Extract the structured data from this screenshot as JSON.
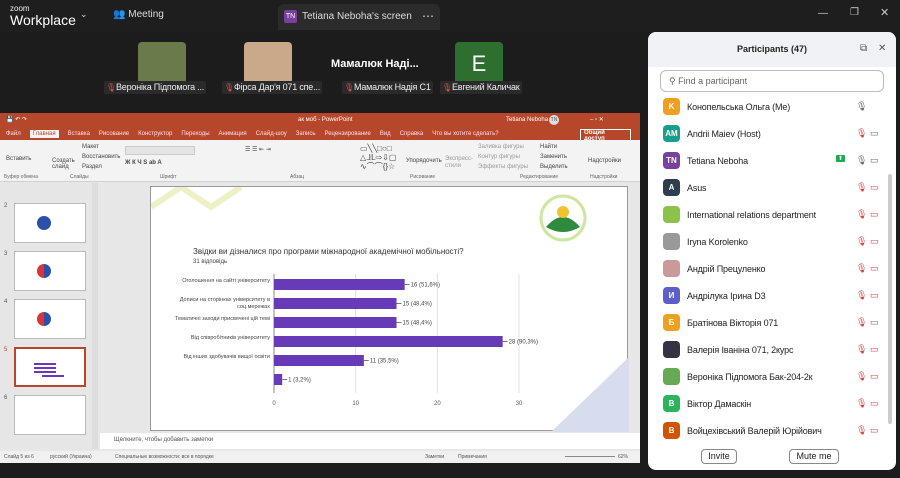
{
  "topbar": {
    "logo_small": "zoom",
    "logo_big": "Workplace",
    "meeting": "Meeting",
    "share_initials": "TN",
    "share_title": "Tetiana Neboha's screen"
  },
  "videos": [
    {
      "name": "Вероніка Підпомога ..."
    },
    {
      "name": "Фірса Дар'я  071 спе..."
    },
    {
      "name": "Мамалюк Наді...",
      "label": "Мамалюк Надія С1"
    },
    {
      "name": "Евгений Каличак",
      "initial": "E"
    }
  ],
  "ppt": {
    "title": "ак моб - PowerPoint",
    "user": "Tetiana Neboha",
    "user_initials": "TN",
    "tabs": [
      "Файл",
      "Главная",
      "Вставка",
      "Рисование",
      "Конструктор",
      "Переходы",
      "Анимация",
      "Слайд-шоу",
      "Запись",
      "Рецензирование",
      "Вид",
      "Справка",
      "Что вы хотите сделать?"
    ],
    "share": "Общий доступ",
    "groups": [
      "Буфер обмена",
      "Слайды",
      "Шрифт",
      "Абзац",
      "Рисование",
      "Редактирование",
      "Надстройки"
    ],
    "buttons": {
      "paste": "Вставить",
      "create": "Создать слайд",
      "layout": "Макет",
      "reset": "Восстановить",
      "section": "Раздел",
      "arrange": "Упорядочить",
      "styles": "Экспресс-стили",
      "fill": "Заливка фигуры",
      "outline": "Контур фигуры",
      "effects": "Эффекты фигуры",
      "find": "Найти",
      "replace": "Заменить",
      "select": "Выделить",
      "addins": "Надстройки"
    },
    "thumb_numbers": [
      "2",
      "3",
      "4",
      "5",
      "6"
    ],
    "notes": "Щелкните, чтобы добавить заметки",
    "status": {
      "slide": "Слайд 5 из 6",
      "lang": "русский (Украина)",
      "access": "Специальные возможности: все в порядке",
      "notes": "Заметки",
      "comments": "Примечания",
      "zoom": "62%"
    }
  },
  "slide": {
    "chart_data": {
      "type": "bar",
      "orientation": "horizontal",
      "title": "Звідки ви дізналися про програми міжнародної академічної мобільності?",
      "subtitle": "31 відповідь",
      "categories": [
        "Оголошення на сайті університету",
        "Дописи на сторінках університету в соц.мережах",
        "Тематичні заходи присвячені цій темі",
        "Від співробітників університету",
        "Від інших здобувачів вищої освіти",
        ""
      ],
      "values": [
        16,
        15,
        15,
        28,
        11,
        1
      ],
      "data_labels": [
        "16 (51,6%)",
        "15 (48,4%)",
        "15 (48,4%)",
        "28 (90,3%)",
        "11 (35,5%)",
        "1 (3,2%)"
      ],
      "xlim": [
        0,
        30
      ],
      "xticks": [
        "0",
        "10",
        "20",
        "30"
      ],
      "color": "#673ab7",
      "grid": true
    }
  },
  "participants": {
    "title": "Participants (47)",
    "search_placeholder": "Find a participant",
    "list": [
      {
        "initials": "K",
        "color": "#f0a020",
        "name": "Конопельська Ольга (Me)",
        "muted": false,
        "video": "none"
      },
      {
        "initials": "AM",
        "color": "#1a9e8c",
        "name": "Andrii Maiev (Host)",
        "muted": true,
        "video": "on"
      },
      {
        "initials": "TN",
        "color": "#7b3fa0",
        "name": "Tetiana Neboha",
        "muted": false,
        "video": "on",
        "sharing": true
      },
      {
        "initials": "A",
        "color": "#2c3e50",
        "name": "Asus",
        "muted": true,
        "video": "off"
      },
      {
        "initials": "",
        "color": "#8bc34a",
        "name": "International relations department",
        "muted": true,
        "video": "off"
      },
      {
        "initials": "",
        "color": "#999",
        "name": "Iryna Korolenko",
        "muted": true,
        "video": "off"
      },
      {
        "initials": "",
        "color": "#c99",
        "name": "Андрій Прецуленко",
        "muted": true,
        "video": "off"
      },
      {
        "initials": "И",
        "color": "#5b5fc7",
        "name": "Андрілука Ірина D3",
        "muted": true,
        "video": "off"
      },
      {
        "initials": "Б",
        "color": "#f0a020",
        "name": "Братінова Вікторія 071",
        "muted": true,
        "video": "on"
      },
      {
        "initials": "",
        "color": "#334",
        "name": "Валерія Іваніна 071, 2курс",
        "muted": true,
        "video": "off"
      },
      {
        "initials": "",
        "color": "#6a5",
        "name": "Вероніка Підпомога Бак-204-2к",
        "muted": true,
        "video": "off"
      },
      {
        "initials": "B",
        "color": "#2db35d",
        "name": "Віктор Дамаскін",
        "muted": true,
        "video": "off"
      },
      {
        "initials": "B",
        "color": "#d35400",
        "name": "Войцехівський Валерій Юрійович",
        "muted": true,
        "video": "off"
      }
    ],
    "invite": "Invite",
    "mute": "Mute me"
  }
}
